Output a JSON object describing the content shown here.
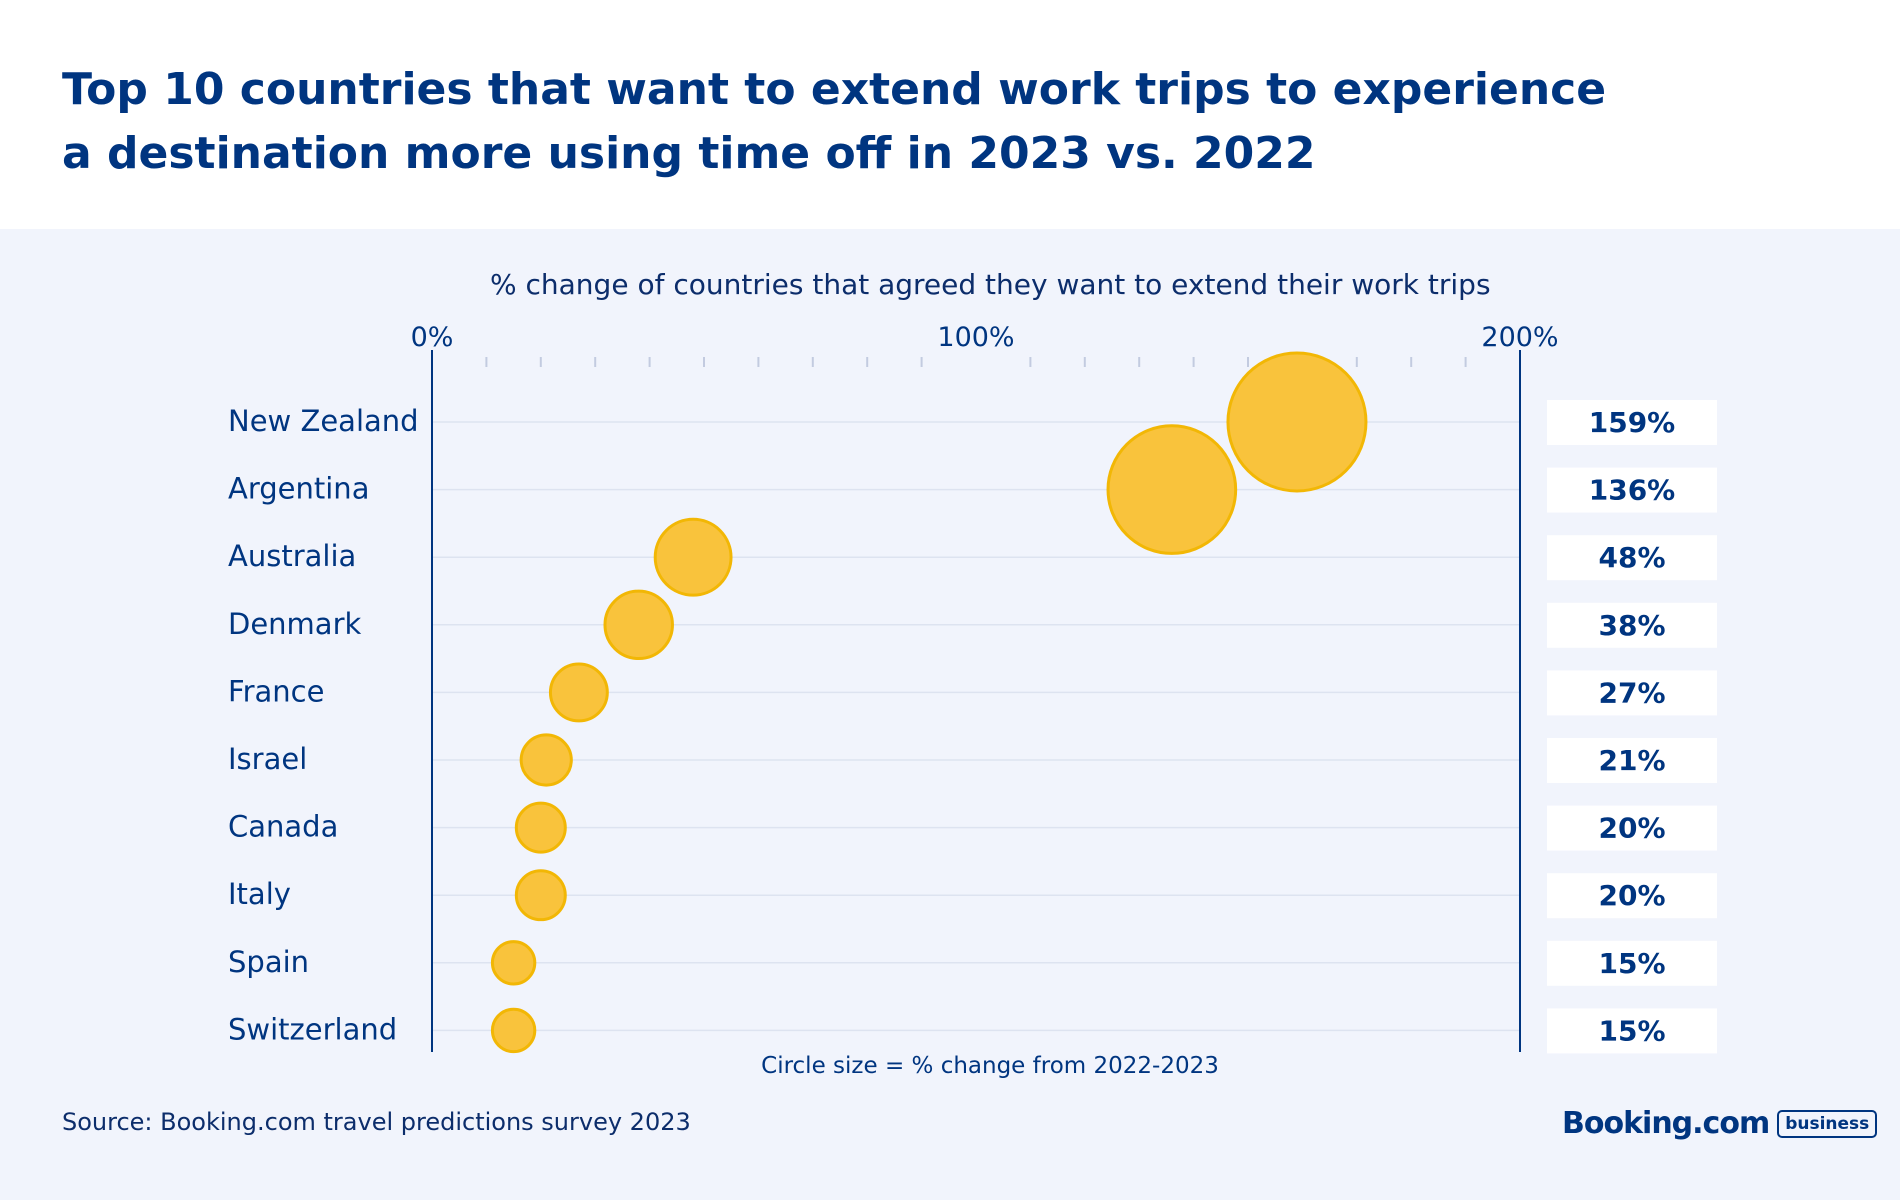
{
  "header": {
    "title_line1": "Top 10 countries that want to extend work trips to experience",
    "title_line2": "a destination more using time off in 2023 vs. 2022"
  },
  "chart_data": {
    "type": "scatter",
    "title": "% change of countries that agreed they want to extend their work trips",
    "x_tick_labels": [
      "0%",
      "100%",
      "200%"
    ],
    "xlim": [
      0,
      200
    ],
    "categories": [
      "New Zealand",
      "Argentina",
      "Australia",
      "Denmark",
      "France",
      "Israel",
      "Canada",
      "Italy",
      "Spain",
      "Switzerland"
    ],
    "values": [
      159,
      136,
      48,
      38,
      27,
      21,
      20,
      20,
      15,
      15
    ],
    "value_labels": [
      "159%",
      "136%",
      "48%",
      "38%",
      "27%",
      "21%",
      "20%",
      "20%",
      "15%",
      "15%"
    ],
    "size_note": "Circle size = % change from 2022-2023",
    "colors": {
      "bubble_fill": "#f9c33c",
      "bubble_stroke": "#f2b705",
      "axis": "#003580",
      "text": "#003580"
    }
  },
  "footer": {
    "source": "Source: Booking.com travel predictions survey 2023",
    "logo_word": "Booking.com",
    "logo_badge": "business"
  }
}
